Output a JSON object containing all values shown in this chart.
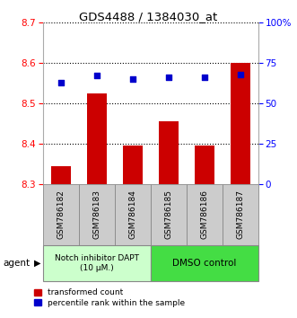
{
  "title": "GDS4488 / 1384030_at",
  "categories": [
    "GSM786182",
    "GSM786183",
    "GSM786184",
    "GSM786185",
    "GSM786186",
    "GSM786187"
  ],
  "bar_values": [
    8.345,
    8.525,
    8.395,
    8.455,
    8.395,
    8.6
  ],
  "blue_values": [
    63,
    67,
    65,
    66,
    66,
    68
  ],
  "bar_color": "#cc0000",
  "blue_color": "#0000cc",
  "ylim_left": [
    8.3,
    8.7
  ],
  "ylim_right": [
    0,
    100
  ],
  "yticks_left": [
    8.3,
    8.4,
    8.5,
    8.6,
    8.7
  ],
  "yticks_right": [
    0,
    25,
    50,
    75,
    100
  ],
  "ytick_right_labels": [
    "0",
    "25",
    "50",
    "75",
    "100%"
  ],
  "group1_label": "Notch inhibitor DAPT\n(10 μM.)",
  "group2_label": "DMSO control",
  "group1_color": "#ccffcc",
  "group2_color": "#44dd44",
  "agent_label": "agent",
  "legend_red": "transformed count",
  "legend_blue": "percentile rank within the sample",
  "bar_bottom": 8.3,
  "xlabel_color": "#333333",
  "label_bg_color": "#cccccc",
  "label_border_color": "#888888"
}
